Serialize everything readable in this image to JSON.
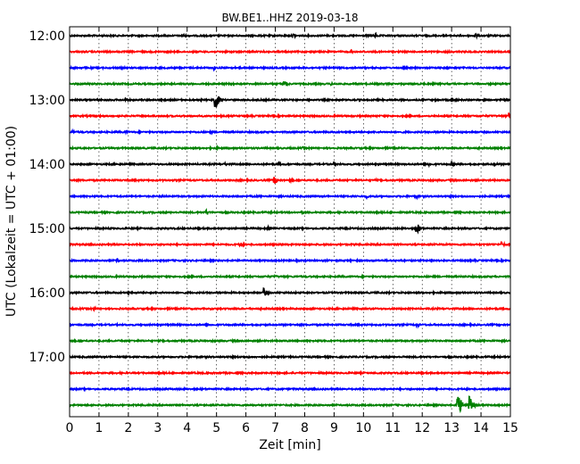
{
  "chart_data": {
    "type": "line",
    "title": "BW.BE1..HHZ 2019-03-18",
    "xlabel": "Zeit  [min]",
    "ylabel": "UTC (Lokalzeit = UTC + 01:00)",
    "xlim": [
      0,
      15
    ],
    "xticks": [
      "0",
      "1",
      "2",
      "3",
      "4",
      "5",
      "6",
      "7",
      "8",
      "9",
      "10",
      "11",
      "12",
      "13",
      "14",
      "15"
    ],
    "yticks": [
      "12:00",
      "13:00",
      "14:00",
      "15:00",
      "16:00",
      "17:00"
    ],
    "grid": "vertical dotted",
    "trace_colors": [
      "#000000",
      "#ff0000",
      "#0000ff",
      "#008000"
    ],
    "series": [
      {
        "start": "12:00",
        "events": [
          {
            "x": 3.85,
            "amp": 0.25
          },
          {
            "x": 7.6,
            "amp": 0.25
          },
          {
            "x": 10.4,
            "amp": 0.3
          },
          {
            "x": 13.8,
            "amp": 0.3
          }
        ]
      },
      {
        "start": "12:15",
        "events": [
          {
            "x": 9.6,
            "amp": 0.2
          },
          {
            "x": 10.0,
            "amp": 0.15
          }
        ]
      },
      {
        "start": "12:30",
        "events": [
          {
            "x": 4.9,
            "amp": 0.25
          },
          {
            "x": 5.5,
            "amp": 0.15
          }
        ]
      },
      {
        "start": "12:45",
        "events": [
          {
            "x": 7.3,
            "amp": 0.45
          },
          {
            "x": 8.9,
            "amp": 0.15
          }
        ]
      },
      {
        "start": "13:00",
        "events": [
          {
            "x": 0.9,
            "amp": 0.2
          },
          {
            "x": 1.9,
            "amp": 0.2
          },
          {
            "x": 4.95,
            "amp": 1.2
          },
          {
            "x": 13.0,
            "amp": 0.3
          }
        ]
      },
      {
        "start": "13:15",
        "events": [
          {
            "x": 14.95,
            "amp": 0.35
          }
        ]
      },
      {
        "start": "13:30",
        "events": [
          {
            "x": 0.1,
            "amp": 0.2
          },
          {
            "x": 1.9,
            "amp": 0.2
          },
          {
            "x": 4.8,
            "amp": 0.2
          }
        ]
      },
      {
        "start": "13:45",
        "events": [
          {
            "x": 5.0,
            "amp": 0.15
          },
          {
            "x": 7.95,
            "amp": 0.15
          }
        ]
      },
      {
        "start": "14:00",
        "events": [
          {
            "x": 5.3,
            "amp": 0.2
          },
          {
            "x": 7.1,
            "amp": 0.2
          },
          {
            "x": 9.0,
            "amp": 0.25
          },
          {
            "x": 12.2,
            "amp": 0.25
          },
          {
            "x": 13.0,
            "amp": 0.3
          },
          {
            "x": 14.45,
            "amp": 0.25
          }
        ]
      },
      {
        "start": "14:15",
        "events": [
          {
            "x": 6.95,
            "amp": 0.55
          },
          {
            "x": 7.5,
            "amp": 0.2
          },
          {
            "x": 10.4,
            "amp": 0.15
          }
        ]
      },
      {
        "start": "14:30",
        "events": [
          {
            "x": 3.1,
            "amp": 0.15
          },
          {
            "x": 10.1,
            "amp": 0.2
          },
          {
            "x": 11.8,
            "amp": 0.2
          }
        ]
      },
      {
        "start": "14:45",
        "events": [
          {
            "x": 4.65,
            "amp": 0.35
          },
          {
            "x": 7.9,
            "amp": 0.2
          }
        ]
      },
      {
        "start": "15:00",
        "events": [
          {
            "x": 6.75,
            "amp": 0.2
          },
          {
            "x": 11.8,
            "amp": 0.75
          }
        ]
      },
      {
        "start": "15:15",
        "events": [
          {
            "x": 5.8,
            "amp": 0.3
          },
          {
            "x": 14.7,
            "amp": 0.3
          }
        ]
      },
      {
        "start": "15:30",
        "events": [
          {
            "x": 1.6,
            "amp": 0.25
          }
        ]
      },
      {
        "start": "15:45",
        "events": [
          {
            "x": 7.0,
            "amp": 0.15
          }
        ]
      },
      {
        "start": "16:00",
        "events": [
          {
            "x": 2.0,
            "amp": 0.15
          },
          {
            "x": 6.6,
            "amp": 0.55
          }
        ]
      },
      {
        "start": "16:15",
        "events": [
          {
            "x": 0.85,
            "amp": 0.2
          }
        ]
      },
      {
        "start": "16:30",
        "events": [
          {
            "x": 11.8,
            "amp": 0.3
          }
        ]
      },
      {
        "start": "16:45",
        "events": []
      },
      {
        "start": "17:00",
        "events": [
          {
            "x": 6.1,
            "amp": 0.12
          }
        ]
      },
      {
        "start": "17:15",
        "events": [
          {
            "x": 10.5,
            "amp": 0.12
          }
        ]
      },
      {
        "start": "17:30",
        "events": []
      },
      {
        "start": "17:45",
        "events": [
          {
            "x": 13.2,
            "amp": 1.6
          },
          {
            "x": 13.6,
            "amp": 1.3
          }
        ]
      }
    ]
  }
}
